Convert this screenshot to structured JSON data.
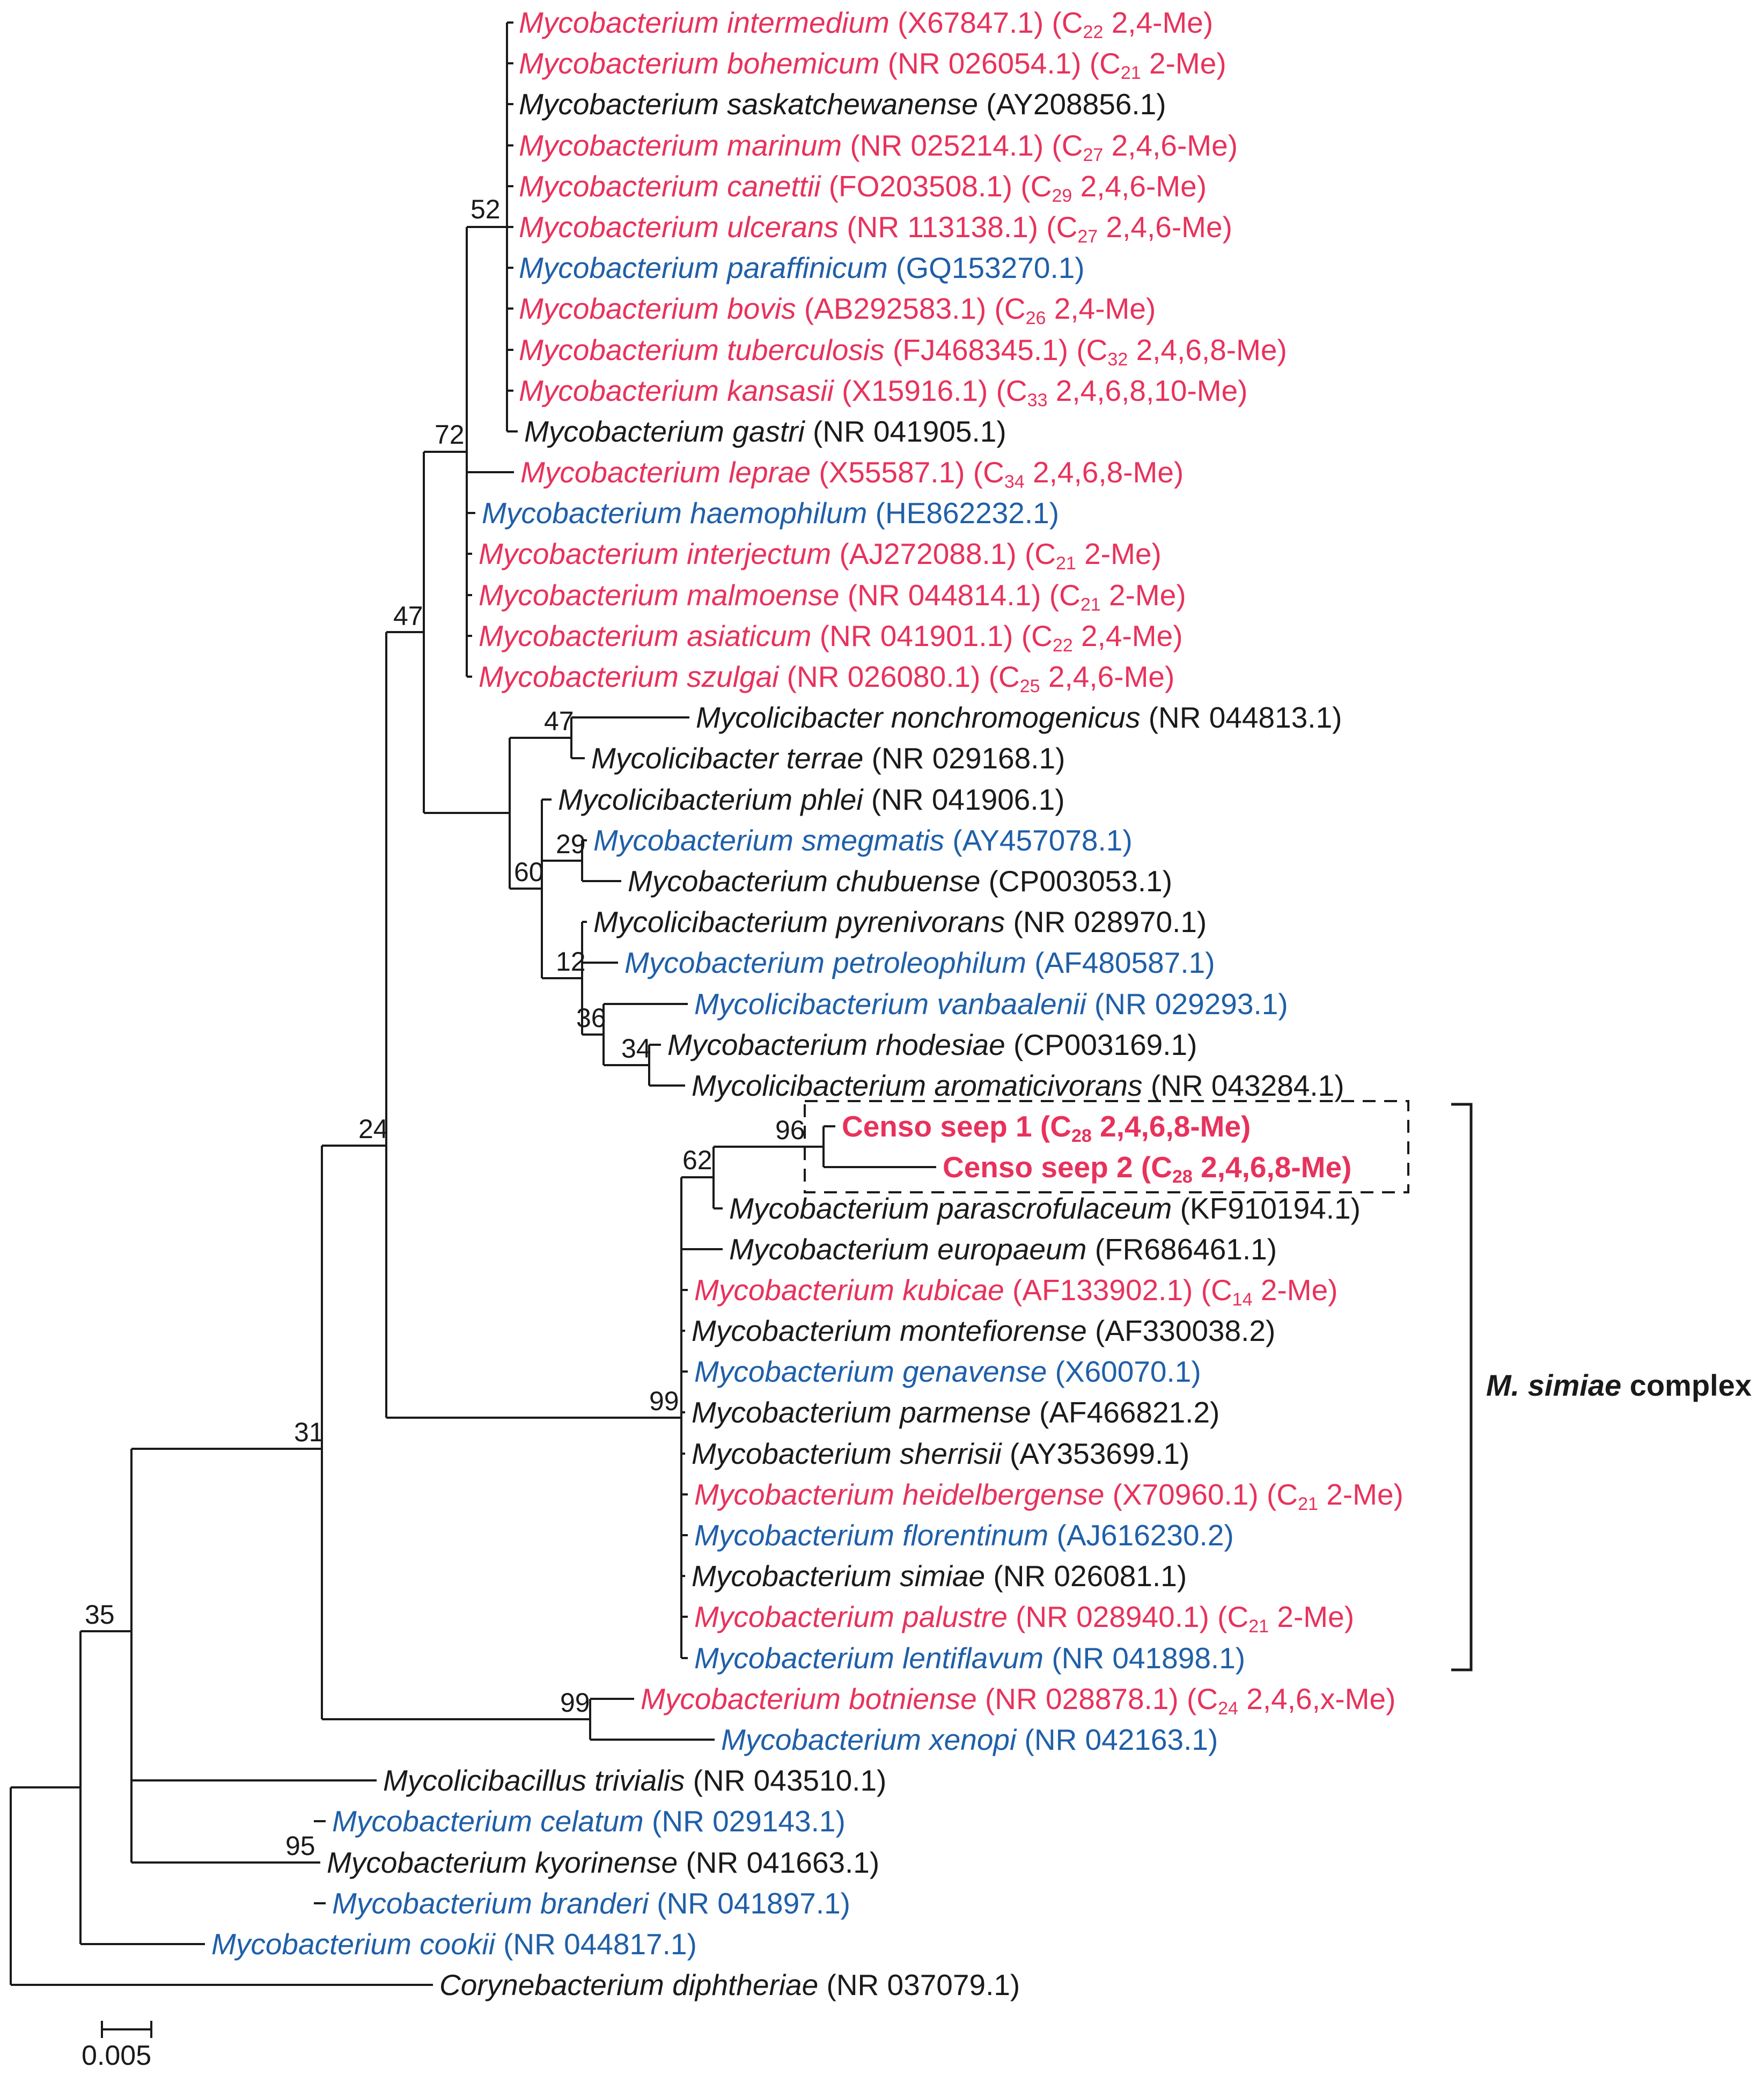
{
  "figure": {
    "kind": "phylogenetic-tree"
  },
  "colors": {
    "taxa_red": "#e7325c",
    "taxa_blue": "#1f5fa8",
    "text": "#1a1a1a",
    "lines": "#1a1a1a"
  },
  "taxa": [
    {
      "name": "Mycobacterium intermedium",
      "acc": "(X67847.1)",
      "c": "22",
      "me": "2,4-Me",
      "color": "red"
    },
    {
      "name": "Mycobacterium bohemicum",
      "acc": "(NR 026054.1)",
      "c": "21",
      "me": "2-Me",
      "color": "red"
    },
    {
      "name": "Mycobacterium saskatchewanense",
      "acc": "(AY208856.1)",
      "color": "black"
    },
    {
      "name": "Mycobacterium marinum",
      "acc": "(NR 025214.1)",
      "c": "27",
      "me": "2,4,6-Me",
      "color": "red"
    },
    {
      "name": "Mycobacterium canettii",
      "acc": "(FO203508.1)",
      "c": "29",
      "me": "2,4,6-Me",
      "color": "red"
    },
    {
      "name": "Mycobacterium ulcerans",
      "acc": "(NR 113138.1)",
      "c": "27",
      "me": "2,4,6-Me",
      "color": "red"
    },
    {
      "name": "Mycobacterium paraffinicum",
      "acc": "(GQ153270.1)",
      "color": "blue"
    },
    {
      "name": "Mycobacterium bovis",
      "acc": "(AB292583.1)",
      "c": "26",
      "me": "2,4-Me",
      "color": "red"
    },
    {
      "name": "Mycobacterium tuberculosis",
      "acc": "(FJ468345.1)",
      "c": "32",
      "me": "2,4,6,8-Me",
      "color": "red"
    },
    {
      "name": "Mycobacterium kansasii",
      "acc": "(X15916.1)",
      "c": "33",
      "me": "2,4,6,8,10-Me",
      "color": "red"
    },
    {
      "name": "Mycobacterium gastri",
      "acc": "(NR 041905.1)",
      "color": "black"
    },
    {
      "name": "Mycobacterium leprae",
      "acc": "(X55587.1)",
      "c": "34",
      "me": "2,4,6,8-Me",
      "color": "red"
    },
    {
      "name": "Mycobacterium haemophilum",
      "acc": "(HE862232.1)",
      "color": "blue"
    },
    {
      "name": "Mycobacterium interjectum",
      "acc": "(AJ272088.1)",
      "c": "21",
      "me": "2-Me",
      "color": "red"
    },
    {
      "name": "Mycobacterium malmoense",
      "acc": "(NR 044814.1)",
      "c": "21",
      "me": "2-Me",
      "color": "red"
    },
    {
      "name": "Mycobacterium asiaticum",
      "acc": "(NR 041901.1)",
      "c": "22",
      "me": "2,4-Me",
      "color": "red"
    },
    {
      "name": "Mycobacterium szulgai",
      "acc": "(NR 026080.1)",
      "c": "25",
      "me": "2,4,6-Me",
      "color": "red"
    },
    {
      "name": "Mycolicibacter nonchromogenicus",
      "acc": "(NR 044813.1)",
      "color": "black"
    },
    {
      "name": "Mycolicibacter terrae",
      "acc": "(NR 029168.1)",
      "color": "black"
    },
    {
      "name": "Mycolicibacterium phlei",
      "acc": "(NR 041906.1)",
      "color": "black"
    },
    {
      "name": "Mycobacterium smegmatis",
      "acc": "(AY457078.1)",
      "color": "blue"
    },
    {
      "name": "Mycobacterium chubuense",
      "acc": "(CP003053.1)",
      "color": "black"
    },
    {
      "name": "Mycolicibacterium pyrenivorans",
      "acc": "(NR 028970.1)",
      "color": "black"
    },
    {
      "name": "Mycobacterium petroleophilum",
      "acc": "(AF480587.1)",
      "color": "blue"
    },
    {
      "name": "Mycolicibacterium vanbaalenii",
      "acc": "(NR 029293.1)",
      "color": "blue"
    },
    {
      "name": "Mycobacterium rhodesiae",
      "acc": "(CP003169.1)",
      "color": "black"
    },
    {
      "name": "Mycolicibacterium aromaticivorans",
      "acc": "(NR 043284.1)",
      "color": "black"
    },
    {
      "name": "Censo seep 1",
      "c": "28",
      "me": "2,4,6,8-Me",
      "color": "red",
      "bold": true,
      "upright": true
    },
    {
      "name": "Censo seep 2",
      "c": "28",
      "me": "2,4,6,8-Me",
      "color": "red",
      "bold": true,
      "upright": true
    },
    {
      "name": "Mycobacterium parascrofulaceum",
      "acc": "(KF910194.1)",
      "color": "black"
    },
    {
      "name": "Mycobacterium europaeum",
      "acc": "(FR686461.1)",
      "color": "black"
    },
    {
      "name": "Mycobacterium kubicae",
      "acc": "(AF133902.1)",
      "c": "14",
      "me": "2-Me",
      "color": "red"
    },
    {
      "name": "Mycobacterium montefiorense",
      "acc": "(AF330038.2)",
      "color": "black"
    },
    {
      "name": "Mycobacterium genavense",
      "acc": "(X60070.1)",
      "color": "blue"
    },
    {
      "name": "Mycobacterium parmense",
      "acc": "(AF466821.2)",
      "color": "black"
    },
    {
      "name": "Mycobacterium sherrisii",
      "acc": "(AY353699.1)",
      "color": "black"
    },
    {
      "name": "Mycobacterium heidelbergense",
      "acc": "(X70960.1)",
      "c": "21",
      "me": "2-Me",
      "color": "red"
    },
    {
      "name": "Mycobacterium florentinum",
      "acc": "(AJ616230.2)",
      "color": "blue"
    },
    {
      "name": "Mycobacterium simiae",
      "acc": "(NR 026081.1)",
      "color": "black"
    },
    {
      "name": "Mycobacterium palustre",
      "acc": "(NR 028940.1)",
      "c": "21",
      "me": "2-Me",
      "color": "red"
    },
    {
      "name": "Mycobacterium lentiflavum",
      "acc": "(NR 041898.1)",
      "color": "blue"
    },
    {
      "name": "Mycobacterium botniense",
      "acc": "(NR 028878.1)",
      "c": "24",
      "me": "2,4,6,x-Me",
      "color": "red"
    },
    {
      "name": "Mycobacterium xenopi",
      "acc": "(NR 042163.1)",
      "color": "blue"
    },
    {
      "name": "Mycolicibacillus trivialis",
      "acc": "(NR 043510.1)",
      "color": "black"
    },
    {
      "name": "Mycobacterium celatum",
      "acc": "(NR 029143.1)",
      "color": "blue"
    },
    {
      "name": "Mycobacterium kyorinense",
      "acc": "(NR 041663.1)",
      "color": "black"
    },
    {
      "name": "Mycobacterium branderi",
      "acc": "(NR 041897.1)",
      "color": "blue"
    },
    {
      "name": "Mycobacterium cookii",
      "acc": "(NR 044817.1)",
      "color": "blue"
    },
    {
      "name": "Corynebacterium diphtheriae",
      "acc": "(NR 037079.1)",
      "color": "black"
    }
  ],
  "bootstraps": [
    "52",
    "72",
    "47",
    "47",
    "29",
    "60",
    "12",
    "36",
    "34",
    "24",
    "96",
    "62",
    "99",
    "31",
    "35",
    "99",
    "95"
  ],
  "annotations": {
    "simiae_complex_italic": "M. simiae",
    "simiae_complex_rest": " complex",
    "scale_bar": "0.005"
  }
}
